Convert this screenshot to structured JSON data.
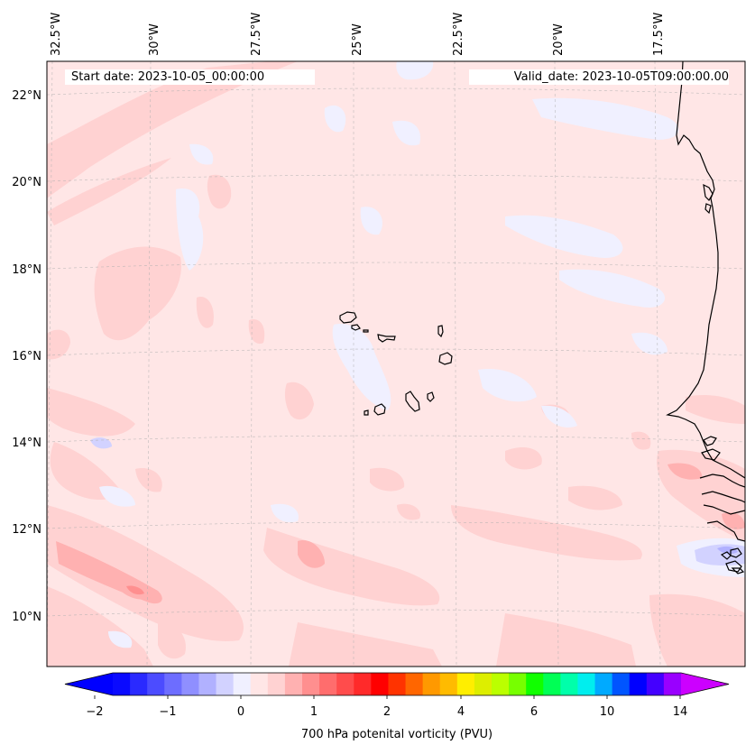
{
  "map": {
    "region": "Cape Verde / West Africa coast",
    "lon_range": [
      -32.5,
      -15.8
    ],
    "lat_range": [
      8.9,
      22.8
    ],
    "lon_ticks": [
      {
        "value": -32.5,
        "label": "32.5°W"
      },
      {
        "value": -30,
        "label": "30°W"
      },
      {
        "value": -27.5,
        "label": "27.5°W"
      },
      {
        "value": -25,
        "label": "25°W"
      },
      {
        "value": -22.5,
        "label": "22.5°W"
      },
      {
        "value": -20,
        "label": "20°W"
      },
      {
        "value": -17.5,
        "label": "17.5°W"
      }
    ],
    "lat_ticks": [
      {
        "value": 22,
        "label": "22°N"
      },
      {
        "value": 20,
        "label": "20°N"
      },
      {
        "value": 18,
        "label": "18°N"
      },
      {
        "value": 16,
        "label": "16°N"
      },
      {
        "value": 14,
        "label": "14°N"
      },
      {
        "value": 12,
        "label": "12°N"
      },
      {
        "value": 10,
        "label": "10°N"
      }
    ],
    "gridlines": true,
    "background_color": "#ffe6e6"
  },
  "header": {
    "start_date": "Start date: 2023-10-05_00:00:00",
    "valid_date": "Valid_date: 2023-10-05T09:00:00.00"
  },
  "colorbar": {
    "label": "700 hPa potenital vorticity (PVU)",
    "tick_labels": [
      "−2",
      "−1",
      "0",
      "1",
      "2",
      "4",
      "6",
      "10",
      "14"
    ],
    "under_color": "#0000ff",
    "over_color": "#cc00ff",
    "colors": [
      "#0a0aff",
      "#2a2aff",
      "#4c4cff",
      "#6d6dff",
      "#8f8fff",
      "#b1b1ff",
      "#d2d2ff",
      "#f0f0ff",
      "#ffe6e6",
      "#ffd2d2",
      "#ffb1b1",
      "#ff8f8f",
      "#ff6d6d",
      "#ff4c4c",
      "#ff2a2a",
      "#ff0000",
      "#ff3300",
      "#ff6600",
      "#ff9900",
      "#ffbb00",
      "#ffee00",
      "#ddee00",
      "#bbff00",
      "#77ff00",
      "#11ff00",
      "#00ff55",
      "#00ffaa",
      "#00eeee",
      "#00aaff",
      "#0055ff",
      "#0000ff",
      "#4400ff",
      "#9900ff"
    ]
  }
}
